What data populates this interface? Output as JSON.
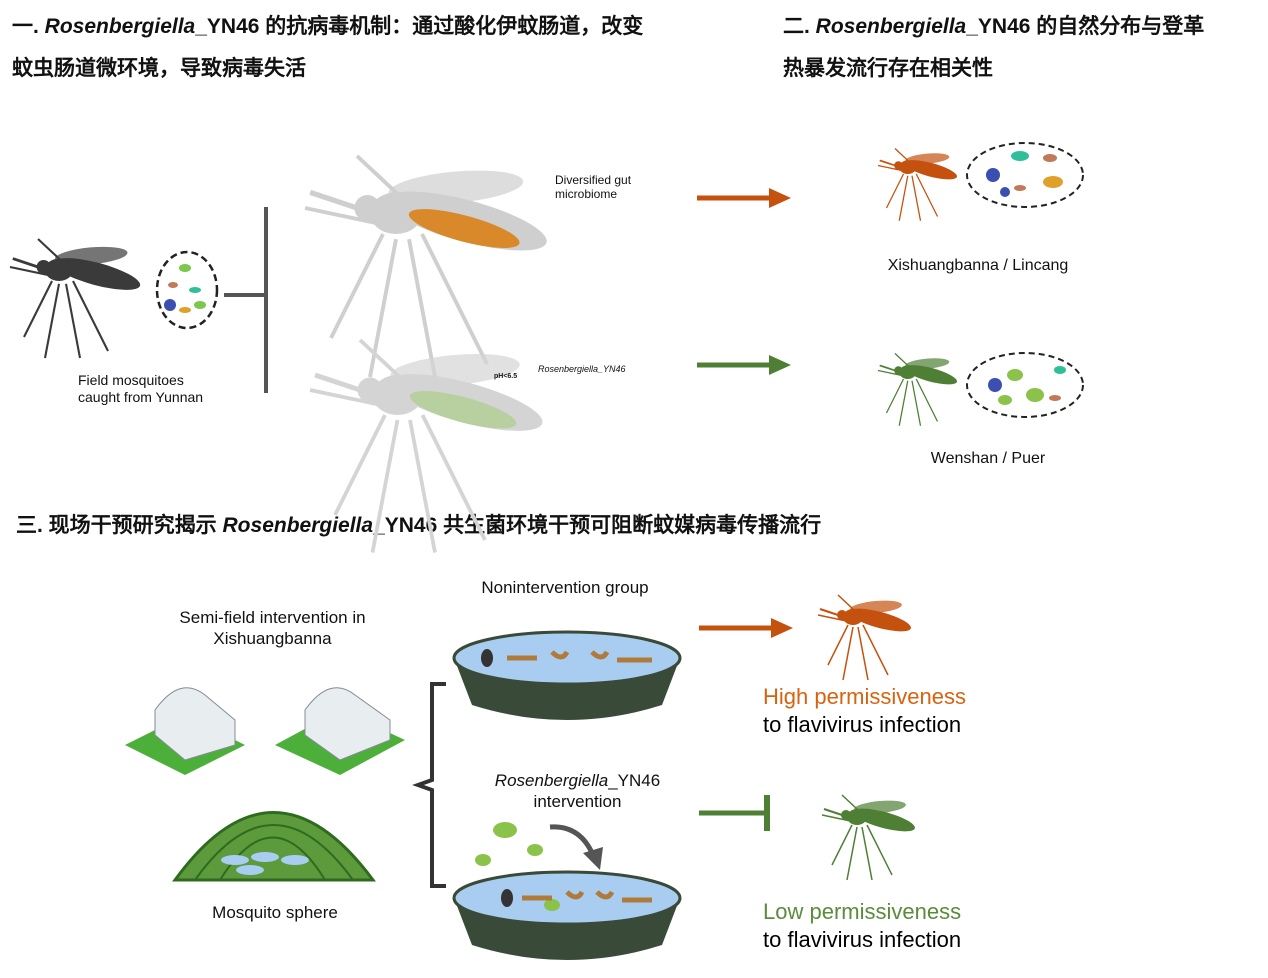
{
  "section1": {
    "title_prefix": "一. ",
    "title_italic": "Rosenbergiella",
    "title_rest": "_YN46 的抗病毒机制：通过酸化伊蚊肠道，改变",
    "title_line2": "蚊虫肠道微环境，导致病毒失活",
    "field_label_1": "Field mosquitoes",
    "field_label_2": "caught from Yunnan",
    "gut_label_1": "Diversified gut",
    "gut_label_2": "microbiome",
    "ph_label": "pH<6.5",
    "strain_label": "Rosenbergiella_YN46"
  },
  "section2": {
    "title_prefix": "二. ",
    "title_italic": "Rosenbergiella",
    "title_rest": "_YN46 的自然分布与登革",
    "title_line2": "热暴发流行存在相关性",
    "region_1": "Xishuangbanna / Lincang",
    "region_2": "Wenshan / Puer"
  },
  "section3": {
    "title_prefix": "三. 现场干预研究揭示 ",
    "title_italic": "Rosenbergiella",
    "title_rest": "_YN46 共生菌环境干预可阻断蚊媒病毒传播流行",
    "semi_field_1": "Semi-field intervention in",
    "semi_field_2": "Xishuangbanna",
    "sphere_label": "Mosquito sphere",
    "nonintervention": "Nonintervention group",
    "intervention_italic": "Rosenbergiella",
    "intervention_rest": "_YN46",
    "intervention_2": "intervention",
    "high_1": "High permissiveness",
    "high_2": "to flavivirus infection",
    "low_1": "Low permissiveness",
    "low_2": "to flavivirus infection"
  },
  "colors": {
    "orange": "#c4510e",
    "green": "#4f7f35",
    "high_text": "#d9620f",
    "low_text": "#5b8c3c",
    "dish": "#3a4a38",
    "water": "#a9cdf0"
  }
}
